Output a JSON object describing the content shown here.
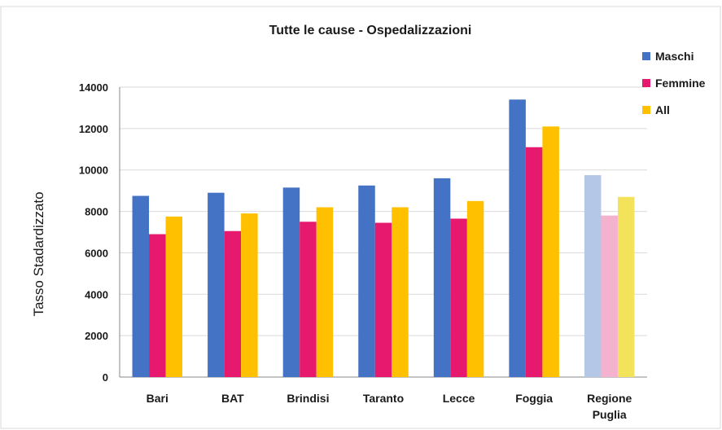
{
  "chart_data": {
    "type": "bar",
    "title": "Tutte le cause - Ospedalizzazioni",
    "xlabel": "",
    "ylabel": "Tasso Stadardizzato",
    "ylim": [
      0,
      14000
    ],
    "yticks": [
      0,
      2000,
      4000,
      6000,
      8000,
      10000,
      12000,
      14000
    ],
    "grid": true,
    "legend_position": "top-right",
    "categories": [
      "Bari",
      "BAT",
      "Brindisi",
      "Taranto",
      "Lecce",
      "Foggia",
      "Regione\nPuglia"
    ],
    "category_lines": [
      [
        "Bari"
      ],
      [
        "BAT"
      ],
      [
        "Brindisi"
      ],
      [
        "Taranto"
      ],
      [
        "Lecce"
      ],
      [
        "Foggia"
      ],
      [
        "Regione",
        "Puglia"
      ]
    ],
    "series": [
      {
        "name": "Maschi",
        "color": "#4472c4",
        "light_color": "#b4c7e7",
        "values": [
          8750,
          8900,
          9150,
          9250,
          9600,
          13400,
          9750
        ]
      },
      {
        "name": "Femmine",
        "color": "#e6196e",
        "light_color": "#f4b2cf",
        "values": [
          6900,
          7050,
          7500,
          7450,
          7650,
          11100,
          7800
        ]
      },
      {
        "name": "All",
        "color": "#ffc000",
        "light_color": "#f2e35a",
        "values": [
          7750,
          7900,
          8200,
          8200,
          8500,
          12100,
          8700
        ]
      }
    ],
    "highlight_light_category_index": 6
  }
}
